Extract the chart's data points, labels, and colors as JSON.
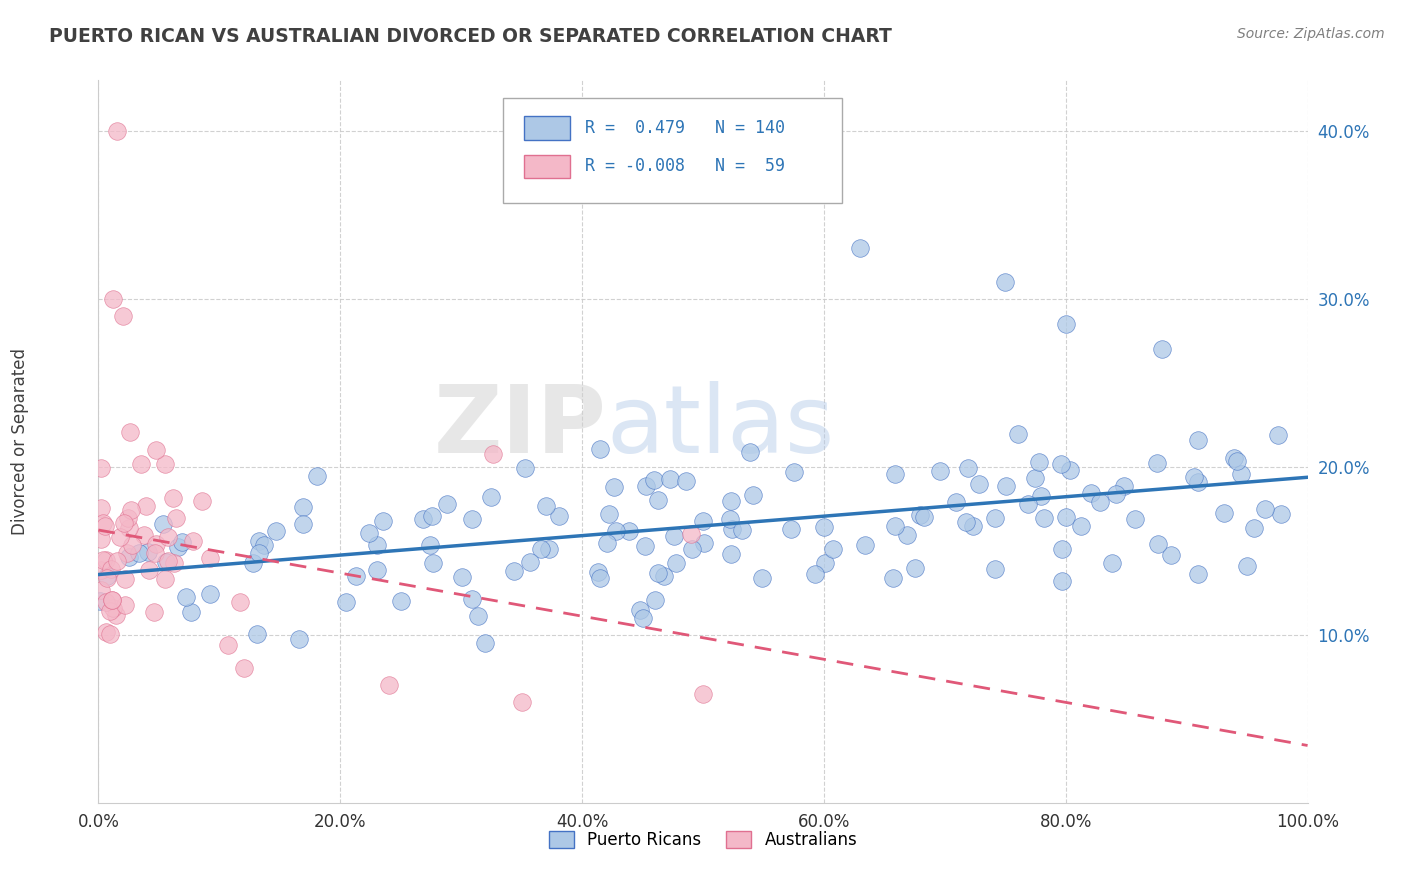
{
  "title": "PUERTO RICAN VS AUSTRALIAN DIVORCED OR SEPARATED CORRELATION CHART",
  "source": "Source: ZipAtlas.com",
  "ylabel": "Divorced or Separated",
  "x_tick_labels": [
    "0.0%",
    "20.0%",
    "40.0%",
    "60.0%",
    "80.0%",
    "100.0%"
  ],
  "x_tick_vals": [
    0,
    20,
    40,
    60,
    80,
    100
  ],
  "y_tick_labels": [
    "10.0%",
    "20.0%",
    "30.0%",
    "40.0%"
  ],
  "y_tick_vals": [
    10,
    20,
    30,
    40
  ],
  "xlim": [
    0,
    100
  ],
  "ylim": [
    0,
    43
  ],
  "blue_R": 0.479,
  "blue_N": 140,
  "pink_R": -0.008,
  "pink_N": 59,
  "blue_color": "#adc8e6",
  "blue_edge_color": "#4472C4",
  "blue_line_color": "#2E75B6",
  "pink_color": "#f4b8c8",
  "pink_edge_color": "#e07090",
  "pink_line_color": "#e05878",
  "legend_label_blue": "Puerto Ricans",
  "legend_label_pink": "Australians",
  "watermark_zip": "ZIP",
  "watermark_atlas": "atlas",
  "grid_color": "#cccccc",
  "bg_color": "#ffffff",
  "title_color": "#404040",
  "source_color": "#808080",
  "axis_color": "#cccccc"
}
